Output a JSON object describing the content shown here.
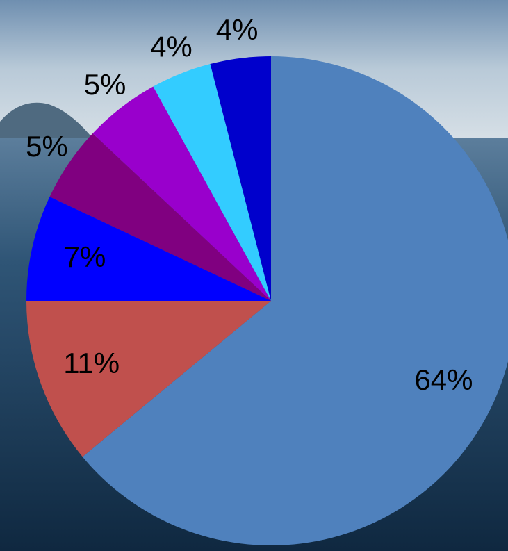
{
  "chart_data": {
    "type": "pie",
    "values": [
      64,
      11,
      7,
      5,
      5,
      4,
      4
    ],
    "value_labels": [
      "64%",
      "11%",
      "7%",
      "5%",
      "5%",
      "4%",
      "4%"
    ],
    "colors": [
      "#4f81bd",
      "#c0504d",
      "#0000ff",
      "#800080",
      "#9900cc",
      "#33ccff",
      "#0000cc"
    ]
  }
}
